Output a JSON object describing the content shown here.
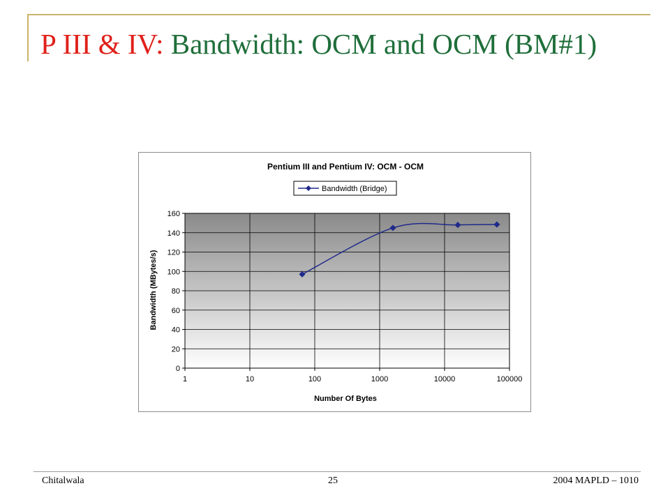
{
  "slide": {
    "title_prefix": "P III & IV:",
    "title_main": " Bandwidth: OCM and OCM (BM#1)",
    "accent_color": "#e0201a",
    "title_color": "#1f6e3a"
  },
  "footer": {
    "left": "Chitalwala",
    "center": "25",
    "right": "2004 MAPLD – 1010"
  },
  "chart_data": {
    "type": "line",
    "title": "Pentium III and Pentium IV: OCM - OCM",
    "xlabel": "Number Of Bytes",
    "ylabel": "Bandwidth (MBytes/s)",
    "x_scale": "log",
    "xlim": [
      1,
      100000
    ],
    "ylim": [
      0,
      160
    ],
    "x_ticks": [
      "1",
      "10",
      "100",
      "1000",
      "10000",
      "100000"
    ],
    "y_ticks": [
      "0",
      "20",
      "40",
      "60",
      "80",
      "100",
      "120",
      "140",
      "160"
    ],
    "grid": true,
    "legend_position": "top",
    "series": [
      {
        "name": "Bandwidth (Bridge)",
        "color": "#1f2a8a",
        "marker": "diamond",
        "x": [
          64,
          1600,
          16000,
          64000
        ],
        "y": [
          97,
          145,
          148,
          148.5
        ]
      }
    ]
  }
}
